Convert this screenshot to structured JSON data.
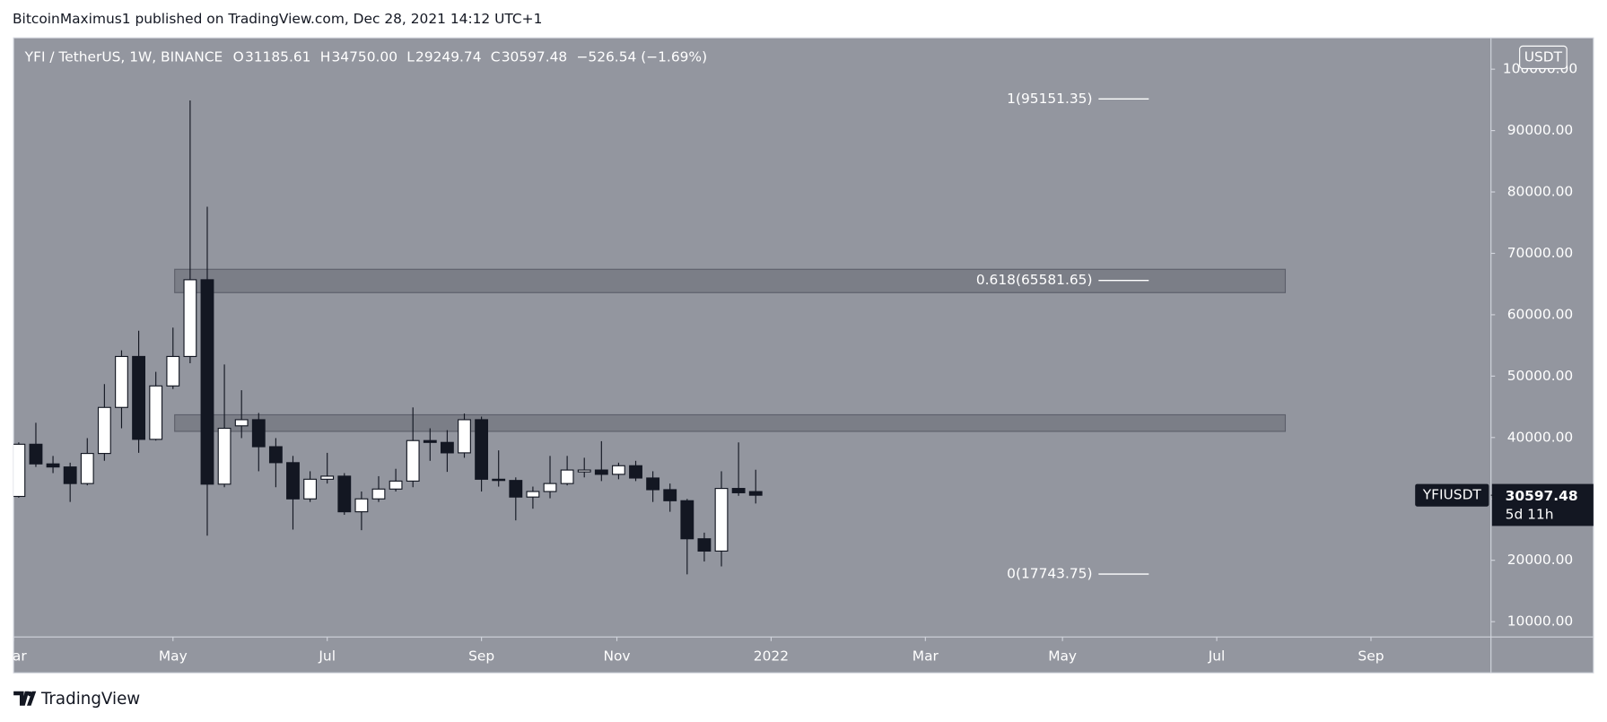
{
  "chart_data": {
    "type": "candlestick",
    "attribution": "BitcoinMaximus1 published on TradingView.com, Dec 28, 2021 14:12 UTC+1",
    "symbol_title": "YFI / TetherUS, 1W, BINANCE",
    "ohlc_header": [
      {
        "key": "O",
        "value": "31185.61"
      },
      {
        "key": "H",
        "value": "34750.00"
      },
      {
        "key": "L",
        "value": "29249.74"
      },
      {
        "key": "C",
        "value": "30597.48"
      }
    ],
    "change": "−526.54 (−1.69%)",
    "currency": "USDT",
    "price_tag": {
      "symbol": "YFIUSDT",
      "price": {
        "value": 30597.48,
        "label": "30597.48"
      },
      "countdown": "5d 11h"
    },
    "brand": "TradingView",
    "up_color": "#ffffff",
    "down_color": "#131722",
    "background": "#93969f",
    "candles": [
      {
        "open": 30400,
        "high": 39200,
        "low": 30200,
        "close": 38900
      },
      {
        "open": 38900,
        "high": 42400,
        "low": 35200,
        "close": 35700
      },
      {
        "open": 35700,
        "high": 37000,
        "low": 34200,
        "close": 35200
      },
      {
        "open": 35200,
        "high": 35900,
        "low": 29500,
        "close": 32500
      },
      {
        "open": 32500,
        "high": 39900,
        "low": 32200,
        "close": 37400
      },
      {
        "open": 37400,
        "high": 48700,
        "low": 36200,
        "close": 44900
      },
      {
        "open": 44900,
        "high": 54200,
        "low": 41500,
        "close": 53200
      },
      {
        "open": 53200,
        "high": 57400,
        "low": 37500,
        "close": 39700
      },
      {
        "open": 39700,
        "high": 50700,
        "low": 39500,
        "close": 48400
      },
      {
        "open": 48400,
        "high": 57900,
        "low": 47900,
        "close": 53200
      },
      {
        "open": 53200,
        "high": 94900,
        "low": 52100,
        "close": 65700
      },
      {
        "open": 65700,
        "high": 77600,
        "low": 24000,
        "close": 32400
      },
      {
        "open": 32400,
        "high": 51900,
        "low": 31900,
        "close": 41500
      },
      {
        "open": 41900,
        "high": 47700,
        "low": 39900,
        "close": 42900
      },
      {
        "open": 42900,
        "high": 44000,
        "low": 34500,
        "close": 38500
      },
      {
        "open": 38500,
        "high": 39900,
        "low": 31900,
        "close": 35900
      },
      {
        "open": 35900,
        "high": 37000,
        "low": 25000,
        "close": 30000
      },
      {
        "open": 30000,
        "high": 34500,
        "low": 29500,
        "close": 33200
      },
      {
        "open": 33200,
        "high": 37500,
        "low": 32500,
        "close": 33700
      },
      {
        "open": 33700,
        "high": 34200,
        "low": 27400,
        "close": 27900
      },
      {
        "open": 27900,
        "high": 31200,
        "low": 24900,
        "close": 30000
      },
      {
        "open": 30000,
        "high": 33700,
        "low": 29500,
        "close": 31600
      },
      {
        "open": 31600,
        "high": 34900,
        "low": 31200,
        "close": 32900
      },
      {
        "open": 32900,
        "high": 44900,
        "low": 31900,
        "close": 39500
      },
      {
        "open": 39500,
        "high": 41500,
        "low": 36200,
        "close": 39200
      },
      {
        "open": 39200,
        "high": 41200,
        "low": 34400,
        "close": 37500
      },
      {
        "open": 37500,
        "high": 43900,
        "low": 36700,
        "close": 42900
      },
      {
        "open": 42900,
        "high": 43400,
        "low": 31200,
        "close": 33200
      },
      {
        "open": 33200,
        "high": 37900,
        "low": 32000,
        "close": 33000
      },
      {
        "open": 33000,
        "high": 33500,
        "low": 26500,
        "close": 30300
      },
      {
        "open": 30300,
        "high": 32000,
        "low": 28400,
        "close": 31200
      },
      {
        "open": 31200,
        "high": 37000,
        "low": 30100,
        "close": 32500
      },
      {
        "open": 32500,
        "high": 37000,
        "low": 32200,
        "close": 34700
      },
      {
        "open": 34400,
        "high": 36700,
        "low": 33500,
        "close": 34700
      },
      {
        "open": 34700,
        "high": 39400,
        "low": 32900,
        "close": 34000
      },
      {
        "open": 34000,
        "high": 35900,
        "low": 33200,
        "close": 35400
      },
      {
        "open": 35400,
        "high": 36200,
        "low": 32900,
        "close": 33400
      },
      {
        "open": 33400,
        "high": 34500,
        "low": 29500,
        "close": 31500
      },
      {
        "open": 31500,
        "high": 32500,
        "low": 27900,
        "close": 29700
      },
      {
        "open": 29700,
        "high": 30000,
        "low": 17700,
        "close": 23500
      },
      {
        "open": 23500,
        "high": 24500,
        "low": 19800,
        "close": 21500
      },
      {
        "open": 21500,
        "high": 34500,
        "low": 19000,
        "close": 31700
      },
      {
        "open": 31700,
        "high": 39200,
        "low": 30500,
        "close": 31000
      },
      {
        "open": 31185.61,
        "high": 34750,
        "low": 29249.74,
        "close": 30597.48
      }
    ],
    "xlim": [
      -0.3,
      85.9
    ],
    "xticks": [
      {
        "value": -0.3,
        "label": "Mar"
      },
      {
        "value": 9.0,
        "label": "May"
      },
      {
        "value": 18.0,
        "label": "Jul"
      },
      {
        "value": 27.0,
        "label": "Sep"
      },
      {
        "value": 34.9,
        "label": "Nov"
      },
      {
        "value": 43.9,
        "label": "2022"
      },
      {
        "value": 52.9,
        "label": "Mar"
      },
      {
        "value": 60.9,
        "label": "May"
      },
      {
        "value": 69.9,
        "label": "Jul"
      },
      {
        "value": 78.9,
        "label": "Sep"
      }
    ],
    "ylim": [
      7500,
      105100
    ],
    "yticks": [
      {
        "value": 10000,
        "label": "10000.00"
      },
      {
        "value": 20000,
        "label": "20000.00"
      },
      {
        "value": 30000,
        "label": "30000.00"
      },
      {
        "value": 40000,
        "label": "40000.00"
      },
      {
        "value": 50000,
        "label": "50000.00"
      },
      {
        "value": 60000,
        "label": "60000.00"
      },
      {
        "value": 70000,
        "label": "70000.00"
      },
      {
        "value": 80000,
        "label": "80000.00"
      },
      {
        "value": 90000,
        "label": "90000.00"
      },
      {
        "value": 100000,
        "label": "100000.00"
      }
    ],
    "fib_levels": [
      {
        "value": 95151.35,
        "label": "1(95151.35)"
      },
      {
        "value": 65581.65,
        "label": "0.618(65581.65)"
      },
      {
        "value": 17743.75,
        "label": "0(17743.75)"
      }
    ],
    "zones": [
      {
        "x0": 9.1,
        "x1": 73.9,
        "top": 67400,
        "bottom": 63600
      },
      {
        "x0": 9.1,
        "x1": 73.9,
        "top": 43700,
        "bottom": 41000
      }
    ]
  }
}
